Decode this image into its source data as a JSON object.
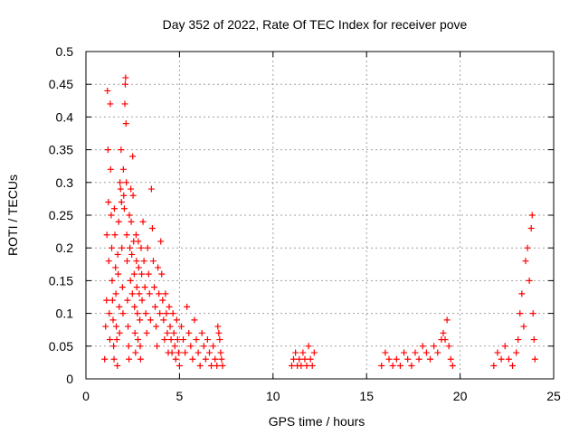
{
  "chart_data": {
    "type": "scatter",
    "title": "Day 352 of 2022, Rate Of TEC Index for receiver pove",
    "xlabel": "GPS time / hours",
    "ylabel": "ROTI / TECUs",
    "xlim": [
      0,
      25
    ],
    "ylim": [
      0,
      0.5
    ],
    "xticks": [
      0,
      5,
      10,
      15,
      20,
      25
    ],
    "xtick_labels": [
      "0",
      "5",
      "10",
      "15",
      "20",
      "25"
    ],
    "yticks": [
      0,
      0.05,
      0.1,
      0.15,
      0.2,
      0.25,
      0.3,
      0.35,
      0.4,
      0.45,
      0.5
    ],
    "ytick_labels": [
      "0",
      "0.05",
      "0.1",
      "0.15",
      "0.2",
      "0.25",
      "0.3",
      "0.35",
      "0.4",
      "0.45",
      "0.5"
    ],
    "grid": true,
    "marker": "+",
    "marker_color": "#ff0000",
    "series": [
      {
        "name": "ROTI",
        "points": [
          [
            1.0,
            0.03
          ],
          [
            1.05,
            0.08
          ],
          [
            1.1,
            0.12
          ],
          [
            1.12,
            0.22
          ],
          [
            1.15,
            0.44
          ],
          [
            1.18,
            0.35
          ],
          [
            1.2,
            0.27
          ],
          [
            1.22,
            0.18
          ],
          [
            1.25,
            0.1
          ],
          [
            1.28,
            0.06
          ],
          [
            1.3,
            0.42
          ],
          [
            1.32,
            0.32
          ],
          [
            1.35,
            0.25
          ],
          [
            1.38,
            0.2
          ],
          [
            1.4,
            0.15
          ],
          [
            1.42,
            0.12
          ],
          [
            1.45,
            0.09
          ],
          [
            1.48,
            0.05
          ],
          [
            1.5,
            0.03
          ],
          [
            1.52,
            0.26
          ],
          [
            1.55,
            0.22
          ],
          [
            1.58,
            0.17
          ],
          [
            1.6,
            0.13
          ],
          [
            1.62,
            0.08
          ],
          [
            1.65,
            0.06
          ],
          [
            1.68,
            0.02
          ],
          [
            1.7,
            0.19
          ],
          [
            1.72,
            0.16
          ],
          [
            1.75,
            0.24
          ],
          [
            1.78,
            0.11
          ],
          [
            1.8,
            0.07
          ],
          [
            1.82,
            0.3
          ],
          [
            1.85,
            0.29
          ],
          [
            1.88,
            0.35
          ],
          [
            1.9,
            0.27
          ],
          [
            1.92,
            0.2
          ],
          [
            1.95,
            0.14
          ],
          [
            1.98,
            0.1
          ],
          [
            2.0,
            0.32
          ],
          [
            2.02,
            0.28
          ],
          [
            2.05,
            0.26
          ],
          [
            2.08,
            0.42
          ],
          [
            2.1,
            0.45
          ],
          [
            2.12,
            0.46
          ],
          [
            2.14,
            0.39
          ],
          [
            2.16,
            0.3
          ],
          [
            2.18,
            0.22
          ],
          [
            2.2,
            0.18
          ],
          [
            2.22,
            0.12
          ],
          [
            2.25,
            0.08
          ],
          [
            2.28,
            0.05
          ],
          [
            2.3,
            0.03
          ],
          [
            2.32,
            0.25
          ],
          [
            2.35,
            0.2
          ],
          [
            2.38,
            0.15
          ],
          [
            2.4,
            0.29
          ],
          [
            2.42,
            0.24
          ],
          [
            2.45,
            0.19
          ],
          [
            2.48,
            0.13
          ],
          [
            2.5,
            0.34
          ],
          [
            2.52,
            0.28
          ],
          [
            2.55,
            0.21
          ],
          [
            2.58,
            0.16
          ],
          [
            2.6,
            0.11
          ],
          [
            2.62,
            0.07
          ],
          [
            2.65,
            0.04
          ],
          [
            2.68,
            0.22
          ],
          [
            2.7,
            0.18
          ],
          [
            2.72,
            0.14
          ],
          [
            2.75,
            0.1
          ],
          [
            2.78,
            0.06
          ],
          [
            2.8,
            0.21
          ],
          [
            2.82,
            0.17
          ],
          [
            2.85,
            0.13
          ],
          [
            2.88,
            0.09
          ],
          [
            2.9,
            0.05
          ],
          [
            2.92,
            0.03
          ],
          [
            2.95,
            0.2
          ],
          [
            2.98,
            0.16
          ],
          [
            3.0,
            0.12
          ],
          [
            3.05,
            0.24
          ],
          [
            3.1,
            0.18
          ],
          [
            3.15,
            0.14
          ],
          [
            3.2,
            0.1
          ],
          [
            3.25,
            0.07
          ],
          [
            3.3,
            0.2
          ],
          [
            3.35,
            0.16
          ],
          [
            3.4,
            0.13
          ],
          [
            3.45,
            0.09
          ],
          [
            3.5,
            0.29
          ],
          [
            3.55,
            0.23
          ],
          [
            3.6,
            0.18
          ],
          [
            3.65,
            0.14
          ],
          [
            3.7,
            0.11
          ],
          [
            3.75,
            0.08
          ],
          [
            3.8,
            0.05
          ],
          [
            3.85,
            0.17
          ],
          [
            3.9,
            0.13
          ],
          [
            3.95,
            0.1
          ],
          [
            4.0,
            0.21
          ],
          [
            4.05,
            0.16
          ],
          [
            4.1,
            0.12
          ],
          [
            4.15,
            0.09
          ],
          [
            4.2,
            0.06
          ],
          [
            4.25,
            0.13
          ],
          [
            4.3,
            0.1
          ],
          [
            4.35,
            0.07
          ],
          [
            4.4,
            0.04
          ],
          [
            4.45,
            0.11
          ],
          [
            4.5,
            0.08
          ],
          [
            4.55,
            0.06
          ],
          [
            4.6,
            0.04
          ],
          [
            4.65,
            0.1
          ],
          [
            4.7,
            0.07
          ],
          [
            4.75,
            0.05
          ],
          [
            4.8,
            0.03
          ],
          [
            4.85,
            0.09
          ],
          [
            4.9,
            0.06
          ],
          [
            4.95,
            0.04
          ],
          [
            5.0,
            0.02
          ],
          [
            5.1,
            0.08
          ],
          [
            5.2,
            0.06
          ],
          [
            5.3,
            0.04
          ],
          [
            5.4,
            0.11
          ],
          [
            5.5,
            0.07
          ],
          [
            5.6,
            0.05
          ],
          [
            5.7,
            0.03
          ],
          [
            5.8,
            0.09
          ],
          [
            5.9,
            0.06
          ],
          [
            6.0,
            0.04
          ],
          [
            6.1,
            0.02
          ],
          [
            6.2,
            0.07
          ],
          [
            6.3,
            0.05
          ],
          [
            6.4,
            0.03
          ],
          [
            6.5,
            0.06
          ],
          [
            6.6,
            0.04
          ],
          [
            6.7,
            0.02
          ],
          [
            6.8,
            0.05
          ],
          [
            6.9,
            0.03
          ],
          [
            7.0,
            0.02
          ],
          [
            7.05,
            0.08
          ],
          [
            7.1,
            0.07
          ],
          [
            7.15,
            0.06
          ],
          [
            7.2,
            0.04
          ],
          [
            7.25,
            0.03
          ],
          [
            7.3,
            0.02
          ],
          [
            11.0,
            0.02
          ],
          [
            11.1,
            0.03
          ],
          [
            11.2,
            0.04
          ],
          [
            11.3,
            0.02
          ],
          [
            11.4,
            0.03
          ],
          [
            11.5,
            0.02
          ],
          [
            11.6,
            0.04
          ],
          [
            11.7,
            0.03
          ],
          [
            11.8,
            0.02
          ],
          [
            11.9,
            0.05
          ],
          [
            12.0,
            0.03
          ],
          [
            12.1,
            0.02
          ],
          [
            12.2,
            0.04
          ],
          [
            15.8,
            0.02
          ],
          [
            16.0,
            0.04
          ],
          [
            16.2,
            0.03
          ],
          [
            16.4,
            0.02
          ],
          [
            16.6,
            0.03
          ],
          [
            16.8,
            0.02
          ],
          [
            17.0,
            0.04
          ],
          [
            17.2,
            0.03
          ],
          [
            17.4,
            0.02
          ],
          [
            17.6,
            0.04
          ],
          [
            17.8,
            0.03
          ],
          [
            18.0,
            0.05
          ],
          [
            18.2,
            0.04
          ],
          [
            18.4,
            0.03
          ],
          [
            18.6,
            0.05
          ],
          [
            18.8,
            0.04
          ],
          [
            19.0,
            0.06
          ],
          [
            19.1,
            0.07
          ],
          [
            19.2,
            0.06
          ],
          [
            19.3,
            0.09
          ],
          [
            19.4,
            0.05
          ],
          [
            19.5,
            0.03
          ],
          [
            19.6,
            0.02
          ],
          [
            21.8,
            0.02
          ],
          [
            22.0,
            0.04
          ],
          [
            22.2,
            0.03
          ],
          [
            22.4,
            0.05
          ],
          [
            22.6,
            0.03
          ],
          [
            22.8,
            0.02
          ],
          [
            23.0,
            0.04
          ],
          [
            23.1,
            0.06
          ],
          [
            23.2,
            0.1
          ],
          [
            23.3,
            0.13
          ],
          [
            23.4,
            0.08
          ],
          [
            23.5,
            0.18
          ],
          [
            23.6,
            0.2
          ],
          [
            23.7,
            0.15
          ],
          [
            23.8,
            0.23
          ],
          [
            23.85,
            0.25
          ],
          [
            23.9,
            0.1
          ],
          [
            23.95,
            0.06
          ],
          [
            24.0,
            0.03
          ]
        ]
      }
    ]
  }
}
